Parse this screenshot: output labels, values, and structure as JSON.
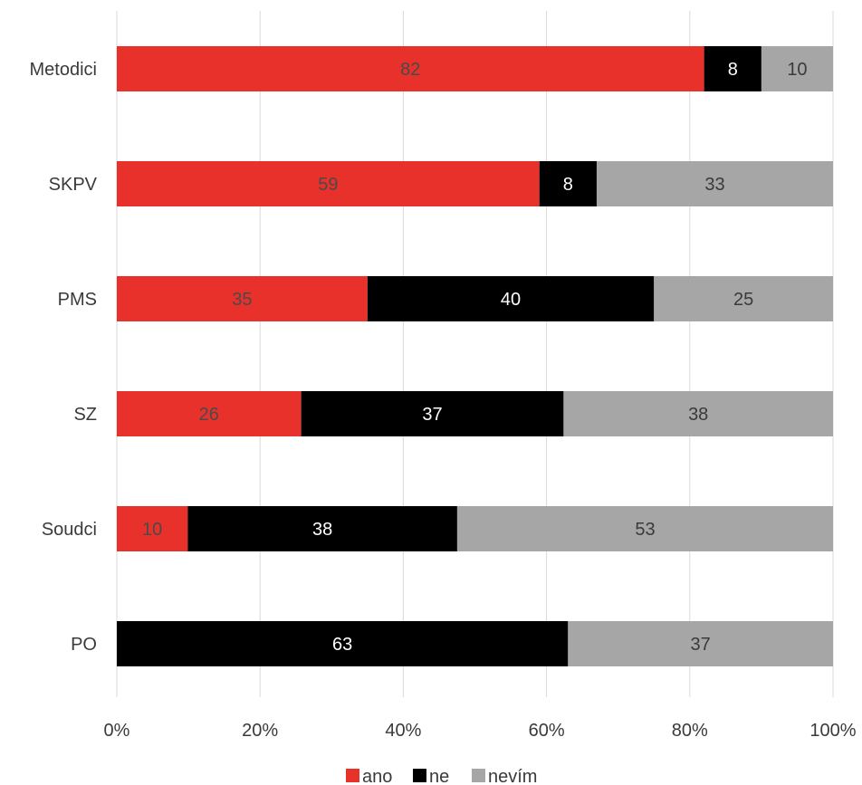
{
  "chart_data": {
    "type": "bar",
    "orientation": "horizontal",
    "stacked": "percent",
    "categories": [
      "Metodici",
      "SKPV",
      "PMS",
      "SZ",
      "Soudci",
      "PO"
    ],
    "series": [
      {
        "name": "ano",
        "color": "#e8312a",
        "label_color": "#4a4a4a",
        "values": [
          82,
          59,
          35,
          26,
          10,
          0
        ]
      },
      {
        "name": "ne",
        "color": "#000000",
        "label_color": "#ffffff",
        "values": [
          8,
          8,
          40,
          37,
          38,
          63
        ]
      },
      {
        "name": "nevím",
        "color": "#a6a6a6",
        "label_color": "#3a3a3a",
        "values": [
          10,
          33,
          25,
          38,
          53,
          37
        ]
      }
    ],
    "x_ticks": [
      "0%",
      "20%",
      "40%",
      "60%",
      "80%",
      "100%"
    ],
    "xlim": [
      0,
      100
    ],
    "title": "",
    "xlabel": "",
    "ylabel": "",
    "grid": "vertical",
    "legend_position": "bottom"
  }
}
